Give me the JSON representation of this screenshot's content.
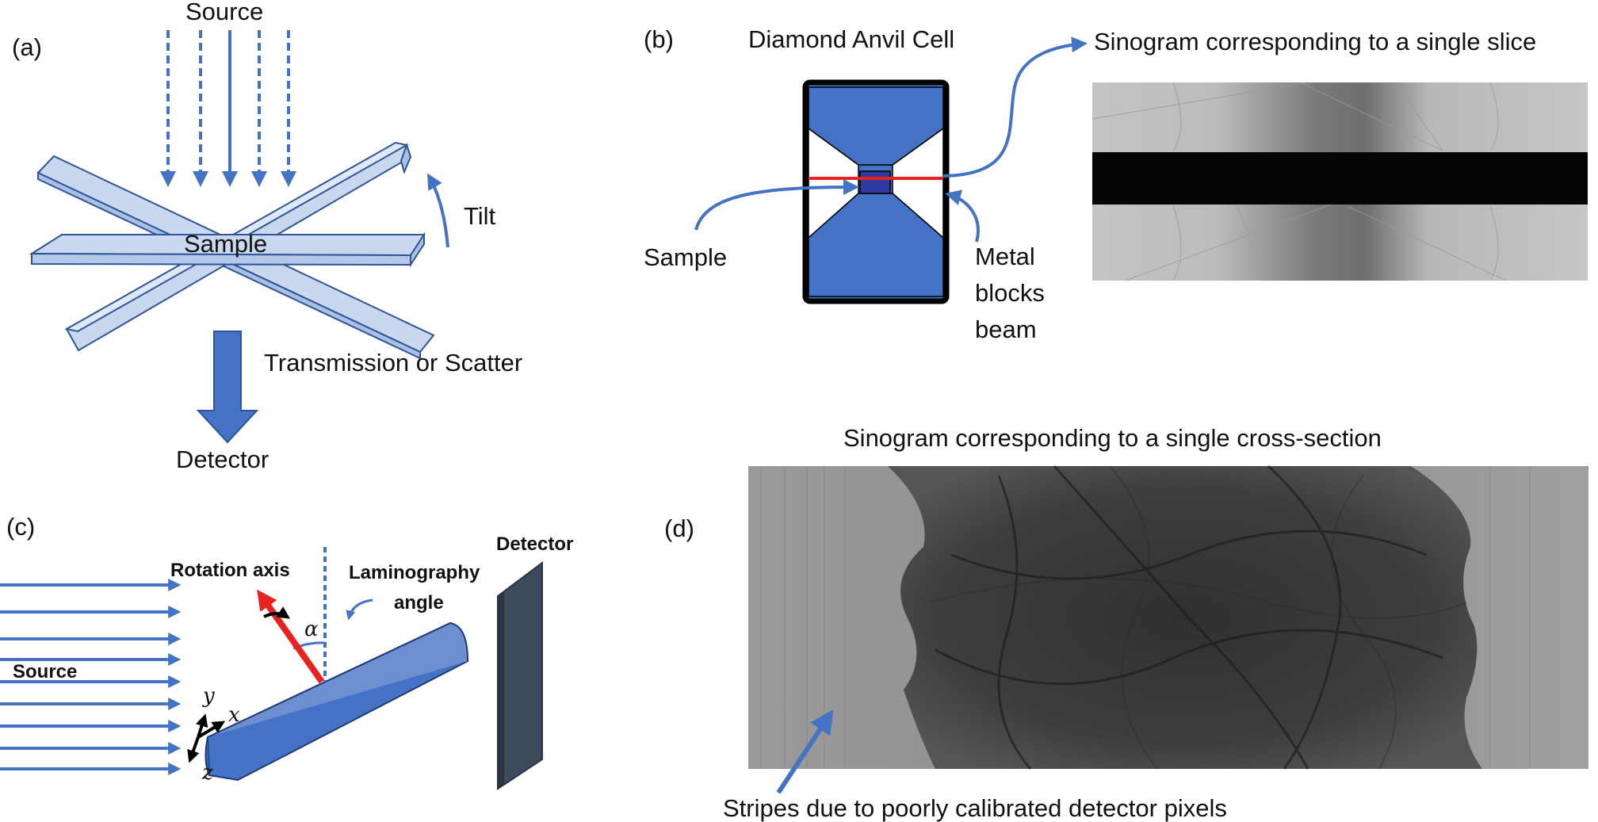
{
  "panel_a": {
    "tag": "(a)",
    "source_label": "Source",
    "tilt_label": "Tilt",
    "sample_label": "Sample",
    "transmission_label": "Transmission or Scatter",
    "detector_label": "Detector"
  },
  "panel_b": {
    "tag": "(b)",
    "cell_label": "Diamond Anvil Cell",
    "sinogram_label": "Sinogram corresponding to a single slice",
    "sample_label": "Sample",
    "metal_label_line1": "Metal",
    "metal_label_line2": "blocks",
    "metal_label_line3": "beam"
  },
  "panel_c": {
    "tag": "(c)",
    "rotation_axis_label": "Rotation axis",
    "lamino_label_line1": "Laminography",
    "lamino_label_line2": "angle",
    "detector_label": "Detector",
    "source_label": "Source",
    "alpha_symbol": "α",
    "axis_x": "x",
    "axis_y": "y",
    "axis_z": "z"
  },
  "panel_d": {
    "tag": "(d)",
    "sinogram_label": "Sinogram corresponding to a single cross-section",
    "stripes_label": "Stripes due to poorly calibrated detector pixels"
  },
  "colors": {
    "accent_blue": "#4472c4",
    "slab_light": "#c9d7ef",
    "slab_edge": "#2f5597",
    "dac_blue": "#4472c4",
    "sample_navy": "#2e3a9e",
    "beam_red": "#e8231f",
    "detector_slate": "#3d4a5c"
  }
}
